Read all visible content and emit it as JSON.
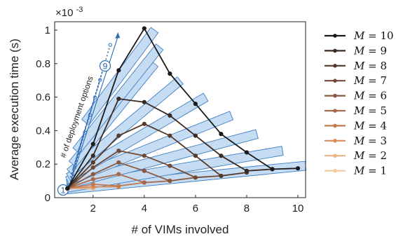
{
  "chart_data": {
    "type": "line",
    "title": "",
    "xlabel": "# of VIMs involved",
    "ylabel": "Average execution time (s)",
    "exponent_label": "×10",
    "exponent_power": "-3",
    "xlim": [
      0.5,
      10.3
    ],
    "ylim": [
      0,
      1.05
    ],
    "x_ticks": [
      2,
      4,
      6,
      8,
      10
    ],
    "y_ticks": [
      0,
      0.2,
      0.4,
      0.6,
      0.8,
      1
    ],
    "y_tick_labels": [
      "0",
      "0.2",
      "0.4",
      "0.6",
      "0.8",
      "1"
    ],
    "grid": false,
    "legend_position": "right",
    "series": [
      {
        "name": "M = 10",
        "legend_var": "M",
        "legend_val": "10",
        "color": "#1a1a1a",
        "x": [
          1,
          2,
          3,
          4,
          5,
          6,
          7,
          8,
          9,
          10
        ],
        "y": [
          0.055,
          0.32,
          0.76,
          1.01,
          0.74,
          0.56,
          0.38,
          0.27,
          0.17,
          0.175
        ]
      },
      {
        "name": "M = 9",
        "legend_var": "M",
        "legend_val": "9",
        "color": "#3a2a22",
        "x": [
          1,
          2,
          3,
          4,
          5,
          6,
          7,
          8,
          9
        ],
        "y": [
          0.055,
          0.25,
          0.59,
          0.57,
          0.49,
          0.37,
          0.25,
          0.16,
          0.17
        ]
      },
      {
        "name": "M = 8",
        "legend_var": "M",
        "legend_val": "8",
        "color": "#55392a",
        "x": [
          1,
          2,
          3,
          4,
          5,
          6,
          7,
          8
        ],
        "y": [
          0.055,
          0.21,
          0.37,
          0.44,
          0.37,
          0.25,
          0.13,
          0.15
        ]
      },
      {
        "name": "M = 7",
        "legend_var": "M",
        "legend_val": "7",
        "color": "#704a35",
        "x": [
          1,
          2,
          3,
          4,
          5,
          6,
          7
        ],
        "y": [
          0.055,
          0.18,
          0.28,
          0.25,
          0.19,
          0.12,
          0.13
        ]
      },
      {
        "name": "M = 6",
        "legend_var": "M",
        "legend_val": "6",
        "color": "#8a5a40",
        "x": [
          1,
          2,
          3,
          4,
          5,
          6
        ],
        "y": [
          0.055,
          0.14,
          0.21,
          0.16,
          0.1,
          0.12
        ]
      },
      {
        "name": "M = 5",
        "legend_var": "M",
        "legend_val": "5",
        "color": "#a6694a",
        "x": [
          1,
          2,
          3,
          4,
          5
        ],
        "y": [
          0.055,
          0.11,
          0.14,
          0.09,
          0.1
        ]
      },
      {
        "name": "M = 4",
        "legend_var": "M",
        "legend_val": "4",
        "color": "#c07a52",
        "x": [
          1,
          2,
          3,
          4
        ],
        "y": [
          0.055,
          0.08,
          0.07,
          0.09
        ]
      },
      {
        "name": "M = 3",
        "legend_var": "M",
        "legend_val": "3",
        "color": "#d98c5a",
        "x": [
          1,
          2,
          3
        ],
        "y": [
          0.055,
          0.065,
          0.065
        ]
      },
      {
        "name": "M = 2",
        "legend_var": "M",
        "legend_val": "2",
        "color": "#eab48a",
        "x": [
          1,
          2
        ],
        "y": [
          0.055,
          0.055
        ]
      },
      {
        "name": "M = 1",
        "legend_var": "M",
        "legend_val": "1",
        "color": "#f4caa0",
        "x": [
          1
        ],
        "y": [
          0.05
        ]
      }
    ],
    "bands": [
      {
        "x": [
          1.0,
          10.3
        ],
        "y": [
          0.05,
          0.19
        ]
      },
      {
        "x": [
          1.0,
          9.4
        ],
        "y": [
          0.06,
          0.28
        ]
      },
      {
        "x": [
          1.0,
          8.4
        ],
        "y": [
          0.08,
          0.38
        ]
      },
      {
        "x": [
          1.0,
          7.4
        ],
        "y": [
          0.1,
          0.49
        ]
      },
      {
        "x": [
          1.05,
          6.4
        ],
        "y": [
          0.12,
          0.6
        ]
      },
      {
        "x": [
          1.1,
          5.4
        ],
        "y": [
          0.15,
          0.7
        ]
      },
      {
        "x": [
          1.2,
          4.4
        ],
        "y": [
          0.2,
          0.8
        ]
      },
      {
        "x": [
          1.35,
          4.6
        ],
        "y": [
          0.28,
          0.9
        ]
      },
      {
        "x": [
          1.7,
          4.4
        ],
        "y": [
          0.45,
          1.0
        ]
      }
    ],
    "annotation": {
      "text": "# of deployment options",
      "start_label": "1",
      "end_label": "9"
    }
  }
}
